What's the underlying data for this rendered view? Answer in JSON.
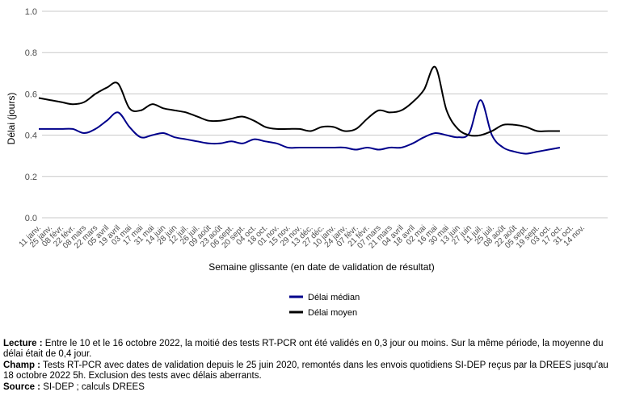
{
  "chart_data": {
    "type": "line",
    "xlabel": "Semaine glissante (en date de validation de résultat)",
    "ylabel": "Délai (jours)",
    "ylim": [
      0.0,
      1.0
    ],
    "y_ticks": [
      "0.0",
      "0.2",
      "0.4",
      "0.6",
      "0.8",
      "1.0"
    ],
    "x_tick_labels": [
      "11 janv.",
      "25 janv.",
      "08 févr.",
      "22 févr.",
      "08 mars",
      "22 mars",
      "05 avril",
      "19 avril",
      "03 mai",
      "17 mai",
      "31 mai",
      "14 juin",
      "28 juin",
      "12 juil.",
      "26 juil.",
      "09 août",
      "23 août",
      "06 sept.",
      "20 sept.",
      "04 oct.",
      "18 oct.",
      "01 nov.",
      "15 nov.",
      "29 nov.",
      "13 déc.",
      "27 déc.",
      "10 janv.",
      "24 janv.",
      "07 févr.",
      "21 févr.",
      "07 mars",
      "21 mars",
      "04 avril",
      "18 avril",
      "02 mai",
      "16 mai",
      "30 mai",
      "13 juin",
      "27 juin",
      "11 juil.",
      "25 juil.",
      "08 août",
      "22 août",
      "05 sept.",
      "19 sept.",
      "03 oct.",
      "17 oct.",
      "31 oct.",
      "14 nov."
    ],
    "x": [
      "2021-01-11",
      "2021-01-25",
      "2021-02-08",
      "2021-02-22",
      "2021-03-08",
      "2021-03-22",
      "2021-04-05",
      "2021-04-19",
      "2021-05-03",
      "2021-05-17",
      "2021-05-31",
      "2021-06-14",
      "2021-06-28",
      "2021-07-12",
      "2021-07-26",
      "2021-08-09",
      "2021-08-23",
      "2021-09-06",
      "2021-09-20",
      "2021-10-04",
      "2021-10-18",
      "2021-11-01",
      "2021-11-15",
      "2021-11-29",
      "2021-12-13",
      "2021-12-27",
      "2022-01-10",
      "2022-01-24",
      "2022-02-07",
      "2022-02-21",
      "2022-03-07",
      "2022-03-21",
      "2022-04-04",
      "2022-04-18",
      "2022-05-02",
      "2022-05-16",
      "2022-05-30",
      "2022-06-13",
      "2022-06-27",
      "2022-07-11",
      "2022-07-25",
      "2022-08-08",
      "2022-08-22",
      "2022-09-05",
      "2022-09-19",
      "2022-10-03",
      "2022-10-17"
    ],
    "series": [
      {
        "name": "Délai médian",
        "color": "#00008B",
        "values": [
          0.43,
          0.43,
          0.43,
          0.43,
          0.41,
          0.43,
          0.47,
          0.51,
          0.44,
          0.39,
          0.4,
          0.41,
          0.39,
          0.38,
          0.37,
          0.36,
          0.36,
          0.37,
          0.36,
          0.38,
          0.37,
          0.36,
          0.34,
          0.34,
          0.34,
          0.34,
          0.34,
          0.34,
          0.33,
          0.34,
          0.33,
          0.34,
          0.34,
          0.36,
          0.39,
          0.41,
          0.4,
          0.39,
          0.41,
          0.57,
          0.4,
          0.34,
          0.32,
          0.31,
          0.32,
          0.33,
          0.34
        ]
      },
      {
        "name": "Délai moyen",
        "color": "#000000",
        "values": [
          0.58,
          0.57,
          0.56,
          0.55,
          0.56,
          0.6,
          0.63,
          0.65,
          0.53,
          0.52,
          0.55,
          0.53,
          0.52,
          0.51,
          0.49,
          0.47,
          0.47,
          0.48,
          0.49,
          0.47,
          0.44,
          0.43,
          0.43,
          0.43,
          0.42,
          0.44,
          0.44,
          0.42,
          0.43,
          0.48,
          0.52,
          0.51,
          0.52,
          0.56,
          0.62,
          0.73,
          0.52,
          0.43,
          0.4,
          0.4,
          0.42,
          0.45,
          0.45,
          0.44,
          0.42,
          0.42,
          0.42
        ]
      }
    ],
    "legend_position": "bottom"
  },
  "notes": [
    {
      "label": "Lecture :",
      "text": " Entre le 10 et le 16 octobre 2022, la moitié des tests RT-PCR ont été validés en 0,3 jour ou moins. Sur la même période, la moyenne du délai était de 0,4 jour."
    },
    {
      "label": "Champ :",
      "text": " Tests RT-PCR avec dates de validation depuis le 25 juin 2020, remontés dans les envois quotidiens SI-DEP reçus par la DREES jusqu'au 18 octobre 2022 5h. Exclusion des tests avec délais aberrants."
    },
    {
      "label": "Source :",
      "text": " SI-DEP ; calculs DREES"
    }
  ]
}
